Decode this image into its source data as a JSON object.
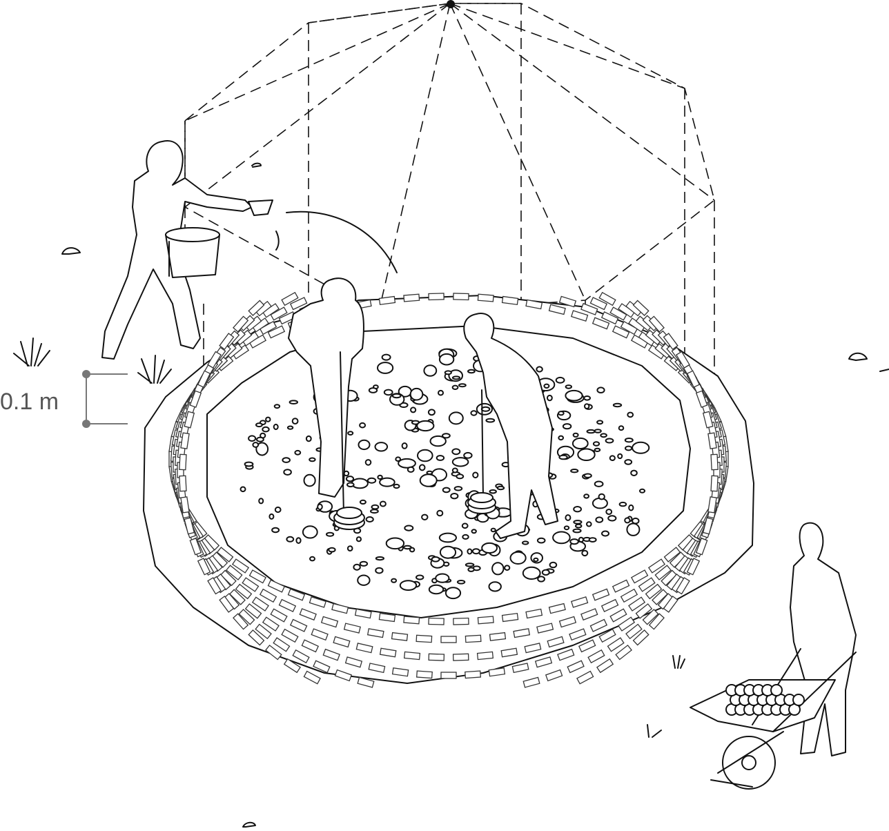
{
  "scale_label": "0.1 m",
  "colors": {
    "ink": "#111111",
    "dimension": "#777777",
    "dimension_text": "#555555",
    "background": "#ffffff"
  }
}
